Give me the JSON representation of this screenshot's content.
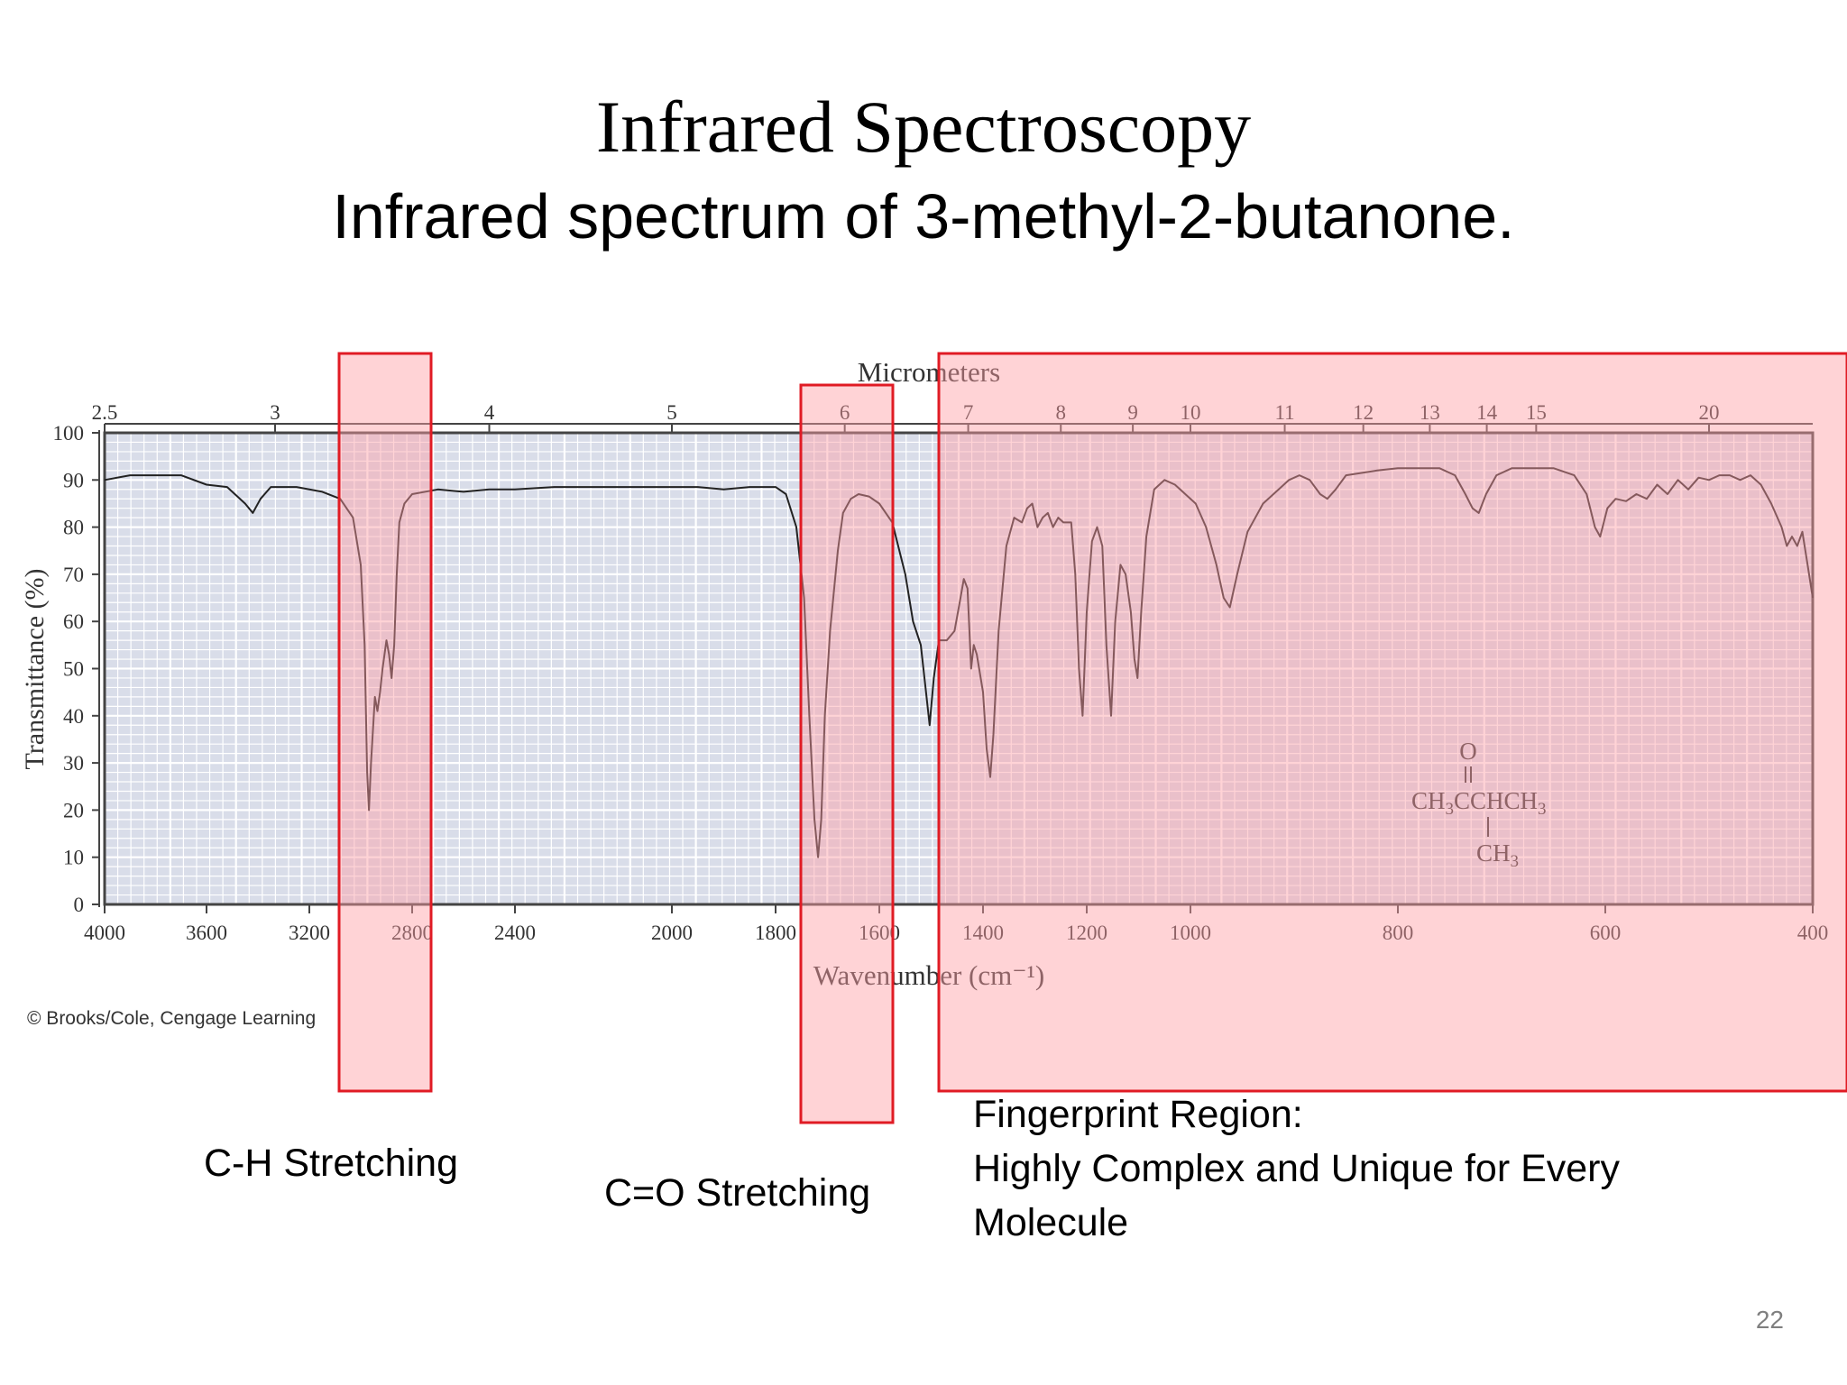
{
  "slide": {
    "title": "Infrared Spectroscopy",
    "subtitle": "Infrared spectrum of 3-methyl-2-butanone.",
    "page_number": "22"
  },
  "annotations": {
    "ch_label": "C-H Stretching",
    "co_label": "C=O Stretching",
    "fingerprint_line1": "Fingerprint Region:",
    "fingerprint_line2": "Highly Complex and Unique for Every",
    "fingerprint_line3": "Molecule",
    "highlight_color": "#ff9ea4",
    "highlight_border": "#e01b24"
  },
  "chart_data": {
    "type": "line",
    "title": "",
    "xlabel": "Wavenumber (cm⁻¹)",
    "ylabel": "Transmittance (%)",
    "top_axis_label": "Micrometers",
    "credit": "© Brooks/Cole, Cengage Learning",
    "ylim": [
      0,
      100
    ],
    "xlim": [
      4000,
      400
    ],
    "grid": true,
    "x_ticks": [
      "4000",
      "3600",
      "3200",
      "2800",
      "2400",
      "2000",
      "1800",
      "1600",
      "1400",
      "1200",
      "1000",
      "800",
      "600",
      "400"
    ],
    "y_ticks": [
      "0",
      "10",
      "20",
      "30",
      "40",
      "50",
      "60",
      "70",
      "80",
      "90",
      "100"
    ],
    "top_ticks": [
      "2.5",
      "3",
      "4",
      "5",
      "6",
      "7",
      "8",
      "9",
      "10",
      "11",
      "12",
      "13",
      "14",
      "15",
      "20"
    ],
    "molecule": {
      "o": "O",
      "main": "CH3CCHCH3",
      "branch": "CH3"
    },
    "series": [
      {
        "points": [
          [
            4000,
            90
          ],
          [
            3900,
            91
          ],
          [
            3800,
            91
          ],
          [
            3700,
            91
          ],
          [
            3600,
            89
          ],
          [
            3520,
            88.5
          ],
          [
            3450,
            85
          ],
          [
            3420,
            83
          ],
          [
            3390,
            86
          ],
          [
            3350,
            88.5
          ],
          [
            3250,
            88.5
          ],
          [
            3150,
            87.5
          ],
          [
            3080,
            86
          ],
          [
            3030,
            82
          ],
          [
            3000,
            72
          ],
          [
            2985,
            55
          ],
          [
            2975,
            28
          ],
          [
            2968,
            20
          ],
          [
            2960,
            30
          ],
          [
            2945,
            44
          ],
          [
            2935,
            41
          ],
          [
            2925,
            45
          ],
          [
            2915,
            50
          ],
          [
            2900,
            56
          ],
          [
            2890,
            53
          ],
          [
            2880,
            48
          ],
          [
            2870,
            55
          ],
          [
            2860,
            70
          ],
          [
            2850,
            81
          ],
          [
            2830,
            85
          ],
          [
            2800,
            87
          ],
          [
            2700,
            88
          ],
          [
            2600,
            87.5
          ],
          [
            2500,
            88
          ],
          [
            2400,
            88
          ],
          [
            2300,
            88.5
          ],
          [
            2200,
            88.5
          ],
          [
            2100,
            88.5
          ],
          [
            2000,
            88.5
          ],
          [
            1950,
            88.5
          ],
          [
            1900,
            88
          ],
          [
            1850,
            88.5
          ],
          [
            1800,
            88.5
          ],
          [
            1780,
            87
          ],
          [
            1760,
            80
          ],
          [
            1745,
            65
          ],
          [
            1735,
            40
          ],
          [
            1725,
            18
          ],
          [
            1718,
            10
          ],
          [
            1712,
            18
          ],
          [
            1705,
            40
          ],
          [
            1695,
            58
          ],
          [
            1680,
            75
          ],
          [
            1670,
            83
          ],
          [
            1655,
            86
          ],
          [
            1640,
            87
          ],
          [
            1620,
            86.5
          ],
          [
            1600,
            85
          ],
          [
            1575,
            81
          ],
          [
            1550,
            70
          ],
          [
            1535,
            60
          ],
          [
            1520,
            55
          ],
          [
            1510,
            45
          ],
          [
            1503,
            38
          ],
          [
            1495,
            48
          ],
          [
            1485,
            56
          ],
          [
            1470,
            56
          ],
          [
            1455,
            58
          ],
          [
            1445,
            64
          ],
          [
            1437,
            69
          ],
          [
            1430,
            67
          ],
          [
            1423,
            50
          ],
          [
            1418,
            55
          ],
          [
            1412,
            53
          ],
          [
            1400,
            45
          ],
          [
            1393,
            33
          ],
          [
            1386,
            27
          ],
          [
            1380,
            36
          ],
          [
            1370,
            58
          ],
          [
            1355,
            76
          ],
          [
            1340,
            82
          ],
          [
            1325,
            81
          ],
          [
            1315,
            84
          ],
          [
            1305,
            85
          ],
          [
            1295,
            80
          ],
          [
            1285,
            82
          ],
          [
            1275,
            83
          ],
          [
            1265,
            80
          ],
          [
            1255,
            82
          ],
          [
            1245,
            81
          ],
          [
            1230,
            81
          ],
          [
            1222,
            70
          ],
          [
            1215,
            50
          ],
          [
            1208,
            40
          ],
          [
            1200,
            62
          ],
          [
            1190,
            77
          ],
          [
            1180,
            80
          ],
          [
            1170,
            76
          ],
          [
            1162,
            55
          ],
          [
            1153,
            40
          ],
          [
            1145,
            60
          ],
          [
            1135,
            72
          ],
          [
            1125,
            70
          ],
          [
            1115,
            62
          ],
          [
            1108,
            52
          ],
          [
            1102,
            48
          ],
          [
            1095,
            62
          ],
          [
            1085,
            78
          ],
          [
            1070,
            88
          ],
          [
            1050,
            90
          ],
          [
            1030,
            89
          ],
          [
            1010,
            87
          ],
          [
            995,
            85
          ],
          [
            985,
            80
          ],
          [
            975,
            72
          ],
          [
            968,
            65
          ],
          [
            962,
            63
          ],
          [
            955,
            70
          ],
          [
            945,
            79
          ],
          [
            930,
            85
          ],
          [
            915,
            88
          ],
          [
            905,
            90
          ],
          [
            895,
            91
          ],
          [
            885,
            90
          ],
          [
            875,
            87
          ],
          [
            868,
            86
          ],
          [
            860,
            88
          ],
          [
            850,
            91
          ],
          [
            820,
            92
          ],
          [
            800,
            92.5
          ],
          [
            780,
            92.5
          ],
          [
            760,
            92.5
          ],
          [
            745,
            91
          ],
          [
            735,
            87
          ],
          [
            728,
            84
          ],
          [
            722,
            83
          ],
          [
            715,
            87
          ],
          [
            705,
            91
          ],
          [
            690,
            92.5
          ],
          [
            670,
            92.5
          ],
          [
            650,
            92.5
          ],
          [
            630,
            91
          ],
          [
            618,
            87
          ],
          [
            610,
            80
          ],
          [
            605,
            78
          ],
          [
            598,
            84
          ],
          [
            590,
            86
          ],
          [
            580,
            85.5
          ],
          [
            570,
            87
          ],
          [
            560,
            86
          ],
          [
            550,
            89
          ],
          [
            540,
            87
          ],
          [
            530,
            90
          ],
          [
            520,
            88
          ],
          [
            510,
            90.5
          ],
          [
            500,
            90
          ],
          [
            490,
            91
          ],
          [
            480,
            91
          ],
          [
            470,
            90
          ],
          [
            460,
            91
          ],
          [
            450,
            89
          ],
          [
            440,
            85
          ],
          [
            430,
            80
          ],
          [
            425,
            76
          ],
          [
            420,
            78
          ],
          [
            415,
            76
          ],
          [
            410,
            79
          ],
          [
            405,
            72
          ],
          [
            400,
            65
          ]
        ]
      }
    ]
  }
}
